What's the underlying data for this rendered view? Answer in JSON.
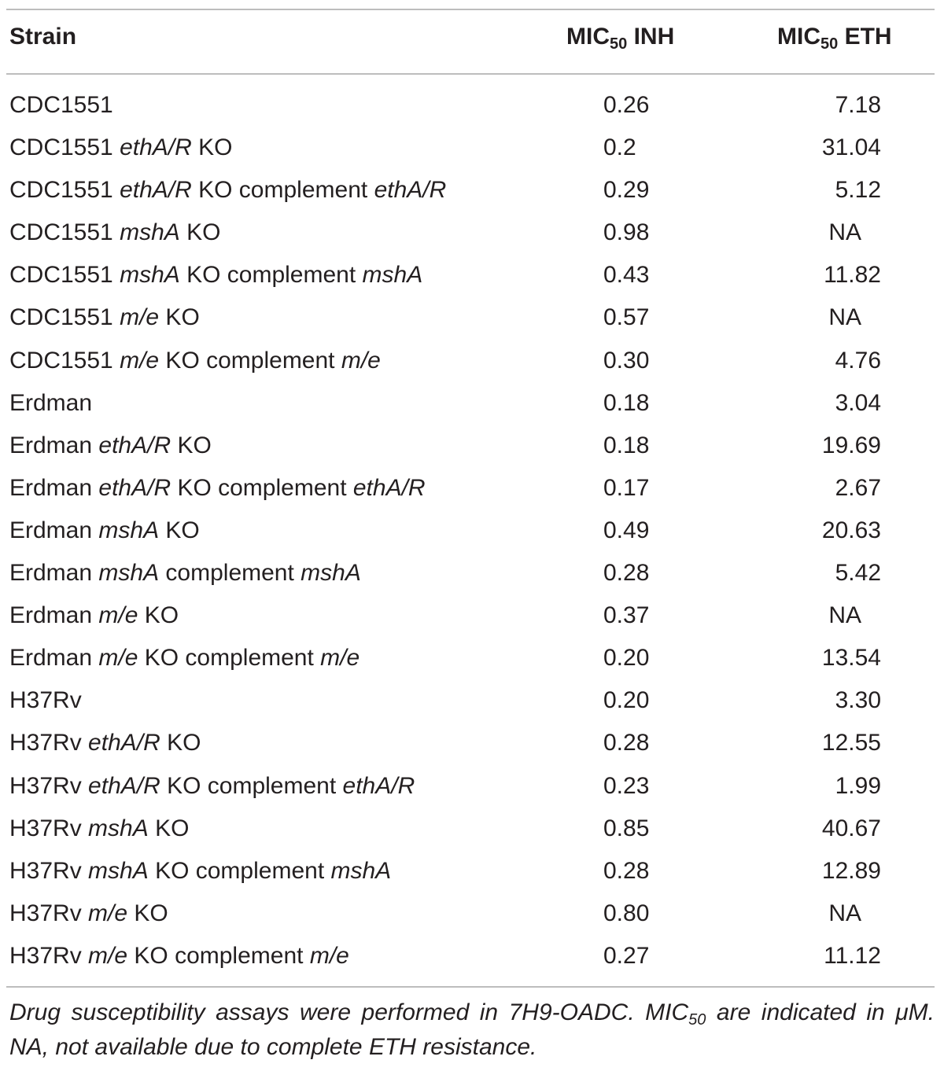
{
  "header": {
    "strain": "Strain",
    "inh_prefix": "MIC",
    "inh_sub": "50",
    "inh_suffix": " INH",
    "eth_prefix": "MIC",
    "eth_sub": "50",
    "eth_suffix": " ETH"
  },
  "rows": [
    {
      "parts": [
        {
          "t": "CDC1551",
          "i": false
        }
      ],
      "inh": "0.26",
      "eth": "7.18"
    },
    {
      "parts": [
        {
          "t": "CDC1551 ",
          "i": false
        },
        {
          "t": "ethA/R",
          "i": true
        },
        {
          "t": " KO",
          "i": false
        }
      ],
      "inh": "0.2",
      "eth": "31.04"
    },
    {
      "parts": [
        {
          "t": "CDC1551 ",
          "i": false
        },
        {
          "t": "ethA/R",
          "i": true
        },
        {
          "t": " KO complement ",
          "i": false
        },
        {
          "t": "ethA/R",
          "i": true
        }
      ],
      "inh": "0.29",
      "eth": "5.12"
    },
    {
      "parts": [
        {
          "t": "CDC1551 ",
          "i": false
        },
        {
          "t": "mshA",
          "i": true
        },
        {
          "t": " KO",
          "i": false
        }
      ],
      "inh": "0.98",
      "eth": "NA"
    },
    {
      "parts": [
        {
          "t": "CDC1551 ",
          "i": false
        },
        {
          "t": "mshA",
          "i": true
        },
        {
          "t": " KO complement ",
          "i": false
        },
        {
          "t": "mshA",
          "i": true
        }
      ],
      "inh": "0.43",
      "eth": "11.82"
    },
    {
      "parts": [
        {
          "t": "CDC1551 ",
          "i": false
        },
        {
          "t": "m/e",
          "i": true
        },
        {
          "t": " KO",
          "i": false
        }
      ],
      "inh": "0.57",
      "eth": "NA"
    },
    {
      "parts": [
        {
          "t": "CDC1551 ",
          "i": false
        },
        {
          "t": "m/e",
          "i": true
        },
        {
          "t": " KO complement ",
          "i": false
        },
        {
          "t": "m/e",
          "i": true
        }
      ],
      "inh": "0.30",
      "eth": "4.76"
    },
    {
      "parts": [
        {
          "t": "Erdman",
          "i": false
        }
      ],
      "inh": "0.18",
      "eth": "3.04"
    },
    {
      "parts": [
        {
          "t": "Erdman ",
          "i": false
        },
        {
          "t": "ethA/R",
          "i": true
        },
        {
          "t": " KO",
          "i": false
        }
      ],
      "inh": "0.18",
      "eth": "19.69"
    },
    {
      "parts": [
        {
          "t": "Erdman ",
          "i": false
        },
        {
          "t": "ethA/R",
          "i": true
        },
        {
          "t": " KO complement ",
          "i": false
        },
        {
          "t": "ethA/R",
          "i": true
        }
      ],
      "inh": "0.17",
      "eth": "2.67"
    },
    {
      "parts": [
        {
          "t": "Erdman ",
          "i": false
        },
        {
          "t": "mshA",
          "i": true
        },
        {
          "t": " KO",
          "i": false
        }
      ],
      "inh": "0.49",
      "eth": "20.63"
    },
    {
      "parts": [
        {
          "t": "Erdman ",
          "i": false
        },
        {
          "t": "mshA",
          "i": true
        },
        {
          "t": " complement ",
          "i": false
        },
        {
          "t": "mshA",
          "i": true
        }
      ],
      "inh": "0.28",
      "eth": "5.42"
    },
    {
      "parts": [
        {
          "t": "Erdman ",
          "i": false
        },
        {
          "t": "m/e",
          "i": true
        },
        {
          "t": " KO",
          "i": false
        }
      ],
      "inh": "0.37",
      "eth": "NA"
    },
    {
      "parts": [
        {
          "t": "Erdman ",
          "i": false
        },
        {
          "t": "m/e",
          "i": true
        },
        {
          "t": " KO complement ",
          "i": false
        },
        {
          "t": "m/e",
          "i": true
        }
      ],
      "inh": "0.20",
      "eth": "13.54"
    },
    {
      "parts": [
        {
          "t": "H37Rv",
          "i": false
        }
      ],
      "inh": "0.20",
      "eth": "3.30"
    },
    {
      "parts": [
        {
          "t": "H37Rv ",
          "i": false
        },
        {
          "t": "ethA/R",
          "i": true
        },
        {
          "t": " KO",
          "i": false
        }
      ],
      "inh": "0.28",
      "eth": "12.55"
    },
    {
      "parts": [
        {
          "t": "H37Rv ",
          "i": false
        },
        {
          "t": "ethA/R",
          "i": true
        },
        {
          "t": " KO complement ",
          "i": false
        },
        {
          "t": "ethA/R",
          "i": true
        }
      ],
      "inh": "0.23",
      "eth": "1.99"
    },
    {
      "parts": [
        {
          "t": "H37Rv ",
          "i": false
        },
        {
          "t": "mshA",
          "i": true
        },
        {
          "t": " KO",
          "i": false
        }
      ],
      "inh": "0.85",
      "eth": "40.67"
    },
    {
      "parts": [
        {
          "t": "H37Rv ",
          "i": false
        },
        {
          "t": "mshA",
          "i": true
        },
        {
          "t": " KO complement ",
          "i": false
        },
        {
          "t": "mshA",
          "i": true
        }
      ],
      "inh": "0.28",
      "eth": "12.89"
    },
    {
      "parts": [
        {
          "t": "H37Rv ",
          "i": false
        },
        {
          "t": "m/e",
          "i": true
        },
        {
          "t": " KO",
          "i": false
        }
      ],
      "inh": "0.80",
      "eth": "NA"
    },
    {
      "parts": [
        {
          "t": "H37Rv ",
          "i": false
        },
        {
          "t": "m/e",
          "i": true
        },
        {
          "t": " KO complement ",
          "i": false
        },
        {
          "t": "m/e",
          "i": true
        }
      ],
      "inh": "0.27",
      "eth": "11.12"
    }
  ],
  "footnote": {
    "before": "Drug susceptibility assays were performed in 7H9-OADC. MIC",
    "sub": "50",
    "after": " are indicated in μM. NA, not available due to complete ETH resistance."
  }
}
